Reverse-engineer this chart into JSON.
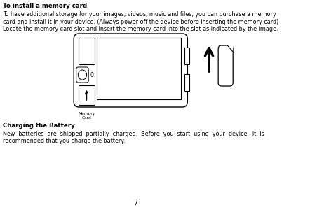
{
  "bg_color": "#ffffff",
  "title1": "To install a memory card",
  "para1_lines": [
    "To have additional storage for your images, videos, music and files, you can purchase a memory",
    "card and install it in your device. (Always power off the device before inserting the memory card)",
    "Locate the memory card slot and Insert the memory card into the slot as indicated by the image."
  ],
  "title2": "Charging the Battery",
  "para2_lines": [
    "New  batteries  are  shipped  partially  charged.  Before  you  start  using  your  device,  it  is",
    "recommended that you charge the battery."
  ],
  "page_number": "7",
  "font_color": "#000000"
}
